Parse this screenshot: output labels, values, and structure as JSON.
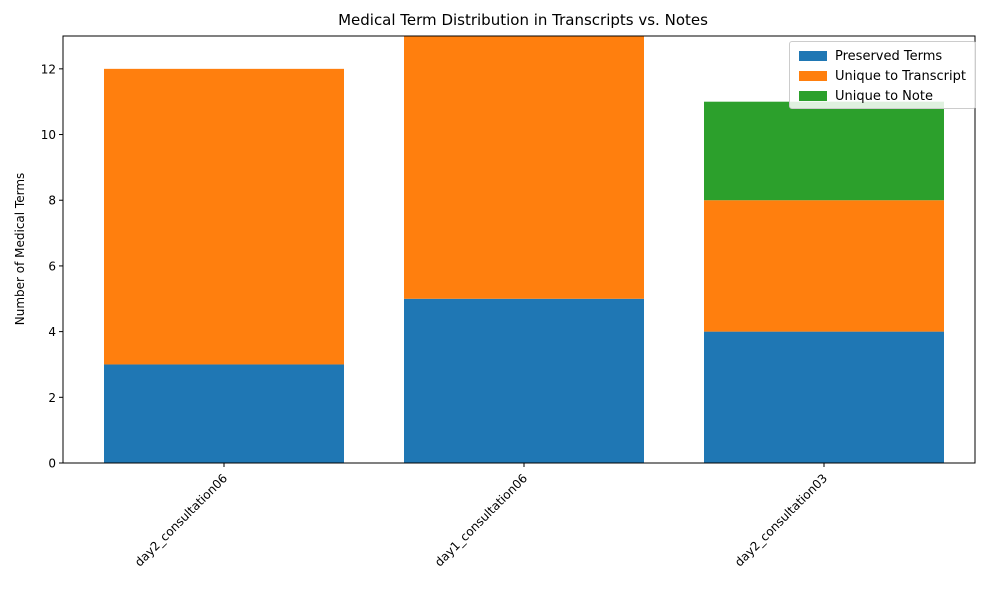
{
  "chart_data": {
    "type": "bar",
    "stacked": true,
    "title": "Medical Term Distribution in Transcripts vs. Notes",
    "xlabel": "",
    "ylabel": "Number of Medical Terms",
    "categories": [
      "day2_consultation06",
      "day1_consultation06",
      "day2_consultation03"
    ],
    "series": [
      {
        "name": "Preserved Terms",
        "values": [
          3,
          5,
          4
        ],
        "color": "#1f77b4"
      },
      {
        "name": "Unique to Transcript",
        "values": [
          9,
          8,
          4
        ],
        "color": "#ff7f0e"
      },
      {
        "name": "Unique to Note",
        "values": [
          0,
          0,
          3
        ],
        "color": "#2ca02c"
      }
    ],
    "ylim": [
      0,
      13
    ],
    "yticks": [
      0,
      2,
      4,
      6,
      8,
      10,
      12
    ],
    "legend_position": "top-right",
    "grid": false
  }
}
